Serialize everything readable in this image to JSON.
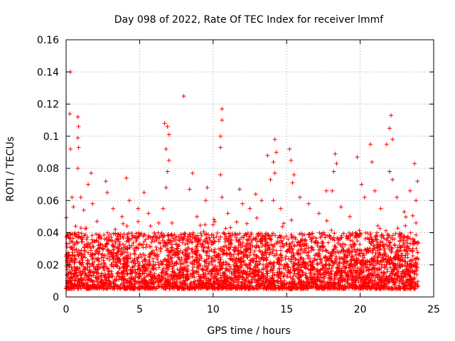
{
  "chart_data": {
    "type": "scatter",
    "title": "Day 098 of 2022, Rate Of TEC Index for receiver lmmf",
    "xlabel": "GPS time / hours",
    "ylabel": "ROTI / TECUs",
    "xlim": [
      0,
      25
    ],
    "ylim": [
      0,
      0.16
    ],
    "x_ticks": [
      0,
      5,
      10,
      15,
      20,
      25
    ],
    "y_ticks": [
      0,
      0.02,
      0.04,
      0.06,
      0.08,
      0.1,
      0.12,
      0.14,
      0.16
    ],
    "x_tick_labels": [
      "0",
      "5",
      "10",
      "15",
      "20",
      "25"
    ],
    "y_tick_labels": [
      "0",
      "0.02",
      "0.04",
      "0.06",
      "0.08",
      "0.1",
      "0.12",
      "0.14",
      "0.16"
    ],
    "grid": true,
    "marker": "+",
    "color": "#ff0000",
    "series": [
      {
        "points": [
          [
            0.3,
            0.14
          ],
          [
            0.25,
            0.114
          ],
          [
            0.8,
            0.112
          ],
          [
            0.85,
            0.106
          ],
          [
            0.8,
            0.099
          ],
          [
            0.85,
            0.093
          ],
          [
            0.3,
            0.092
          ],
          [
            0.8,
            0.08
          ],
          [
            1.7,
            0.077
          ],
          [
            1.5,
            0.07
          ],
          [
            1.0,
            0.062
          ],
          [
            0.4,
            0.062
          ],
          [
            0.5,
            0.056
          ],
          [
            1.2,
            0.054
          ],
          [
            1.8,
            0.058
          ],
          [
            2.1,
            0.047
          ],
          [
            2.7,
            0.072
          ],
          [
            2.8,
            0.065
          ],
          [
            3.2,
            0.055
          ],
          [
            3.8,
            0.05
          ],
          [
            4.1,
            0.074
          ],
          [
            4.3,
            0.06
          ],
          [
            4.9,
            0.055
          ],
          [
            5.3,
            0.065
          ],
          [
            5.6,
            0.052
          ],
          [
            6.3,
            0.046
          ],
          [
            6.7,
            0.108
          ],
          [
            6.9,
            0.106
          ],
          [
            7.0,
            0.101
          ],
          [
            6.8,
            0.092
          ],
          [
            7.0,
            0.085
          ],
          [
            6.9,
            0.078
          ],
          [
            6.8,
            0.068
          ],
          [
            6.6,
            0.055
          ],
          [
            7.2,
            0.046
          ],
          [
            8.0,
            0.125
          ],
          [
            8.4,
            0.067
          ],
          [
            8.6,
            0.077
          ],
          [
            8.9,
            0.05
          ],
          [
            9.6,
            0.068
          ],
          [
            9.5,
            0.06
          ],
          [
            10.0,
            0.045
          ],
          [
            10.6,
            0.117
          ],
          [
            10.6,
            0.11
          ],
          [
            10.5,
            0.1
          ],
          [
            10.5,
            0.093
          ],
          [
            10.5,
            0.076
          ],
          [
            10.6,
            0.062
          ],
          [
            11.0,
            0.052
          ],
          [
            11.8,
            0.067
          ],
          [
            12.0,
            0.058
          ],
          [
            12.5,
            0.055
          ],
          [
            12.9,
            0.064
          ],
          [
            13.3,
            0.06
          ],
          [
            13.7,
            0.088
          ],
          [
            13.9,
            0.073
          ],
          [
            14.2,
            0.098
          ],
          [
            14.3,
            0.09
          ],
          [
            14.1,
            0.084
          ],
          [
            14.2,
            0.077
          ],
          [
            14.1,
            0.06
          ],
          [
            14.6,
            0.055
          ],
          [
            15.2,
            0.092
          ],
          [
            15.3,
            0.085
          ],
          [
            15.5,
            0.076
          ],
          [
            15.4,
            0.071
          ],
          [
            15.9,
            0.062
          ],
          [
            16.5,
            0.058
          ],
          [
            17.2,
            0.052
          ],
          [
            17.7,
            0.066
          ],
          [
            18.1,
            0.066
          ],
          [
            18.3,
            0.089
          ],
          [
            18.4,
            0.083
          ],
          [
            18.2,
            0.078
          ],
          [
            18.7,
            0.056
          ],
          [
            19.3,
            0.05
          ],
          [
            19.8,
            0.087
          ],
          [
            20.1,
            0.07
          ],
          [
            20.3,
            0.062
          ],
          [
            20.7,
            0.095
          ],
          [
            20.8,
            0.084
          ],
          [
            21.0,
            0.066
          ],
          [
            21.4,
            0.055
          ],
          [
            21.8,
            0.095
          ],
          [
            22.1,
            0.113
          ],
          [
            22.0,
            0.105
          ],
          [
            22.2,
            0.098
          ],
          [
            22.0,
            0.078
          ],
          [
            22.2,
            0.073
          ],
          [
            22.5,
            0.062
          ],
          [
            23.0,
            0.053
          ],
          [
            23.4,
            0.066
          ],
          [
            23.7,
            0.083
          ],
          [
            23.9,
            0.072
          ],
          [
            23.8,
            0.06
          ],
          [
            23.8,
            0.046
          ]
        ]
      }
    ]
  }
}
